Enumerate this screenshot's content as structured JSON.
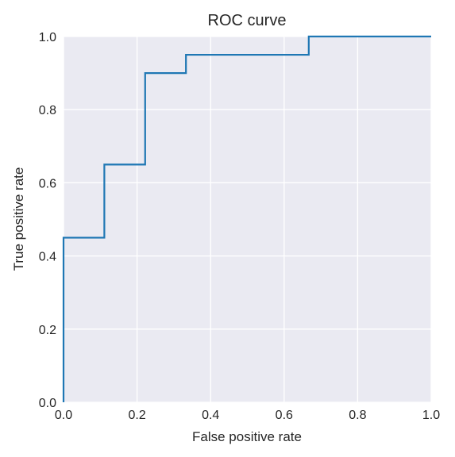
{
  "chart_data": {
    "type": "line",
    "title": "ROC curve",
    "xlabel": "False positive rate",
    "ylabel": "True positive rate",
    "xlim": [
      0,
      1
    ],
    "ylim": [
      0,
      1
    ],
    "x_ticks": [
      "0.0",
      "0.2",
      "0.4",
      "0.6",
      "0.8",
      "1.0"
    ],
    "y_ticks": [
      "0.0",
      "0.2",
      "0.4",
      "0.6",
      "0.8",
      "1.0"
    ],
    "grid": true,
    "line_style": "step",
    "series": [
      {
        "x": [
          0.0,
          0.0,
          0.111,
          0.111,
          0.222,
          0.222,
          0.333,
          0.333,
          0.667,
          0.667,
          1.0
        ],
        "y": [
          0.0,
          0.45,
          0.45,
          0.65,
          0.65,
          0.9,
          0.9,
          0.95,
          0.95,
          1.0,
          1.0
        ]
      }
    ],
    "colors": {
      "background": "#eaeaf2",
      "grid": "#ffffff",
      "line": "#1f77b4"
    }
  }
}
